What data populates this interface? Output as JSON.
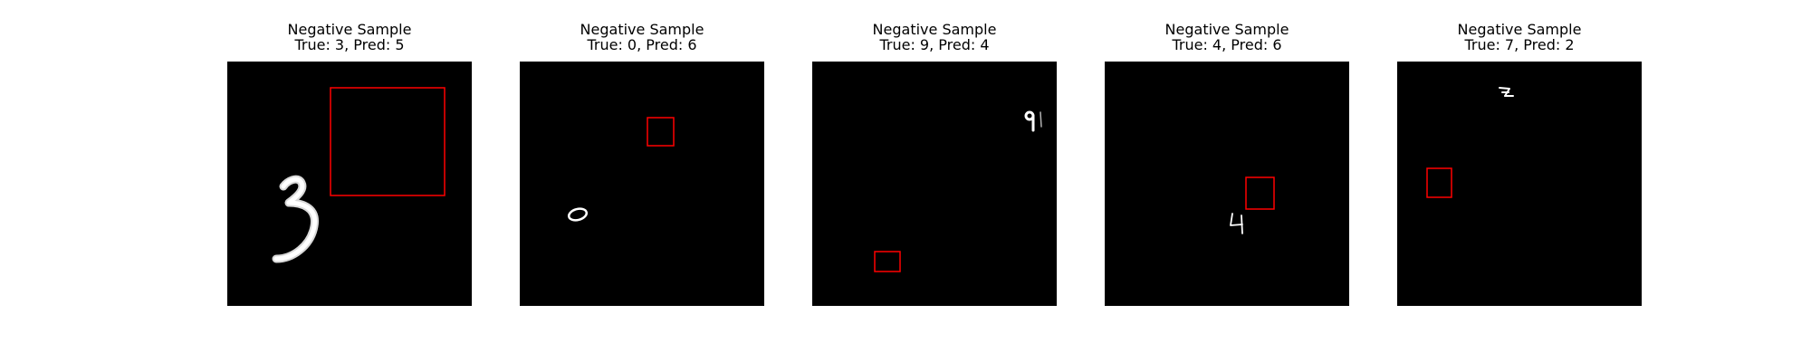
{
  "figure": {
    "panels": [
      {
        "title": "Negative Sample",
        "subtitle": "True: 3, Pred: 5",
        "true_label": 3,
        "pred_label": 5,
        "digit_glyph": "3"
      },
      {
        "title": "Negative Sample",
        "subtitle": "True: 0, Pred: 6",
        "true_label": 0,
        "pred_label": 6,
        "digit_glyph": "0"
      },
      {
        "title": "Negative Sample",
        "subtitle": "True: 9, Pred: 4",
        "true_label": 9,
        "pred_label": 4,
        "digit_glyph": "9"
      },
      {
        "title": "Negative Sample",
        "subtitle": "True: 4, Pred: 6",
        "true_label": 4,
        "pred_label": 6,
        "digit_glyph": "4"
      },
      {
        "title": "Negative Sample",
        "subtitle": "True: 7, Pred: 2",
        "true_label": 7,
        "pred_label": 2,
        "digit_glyph": "7"
      }
    ],
    "colors": {
      "image_background": "#000000",
      "digit": "#ffffff",
      "bounding_box": "#ff0000"
    }
  }
}
